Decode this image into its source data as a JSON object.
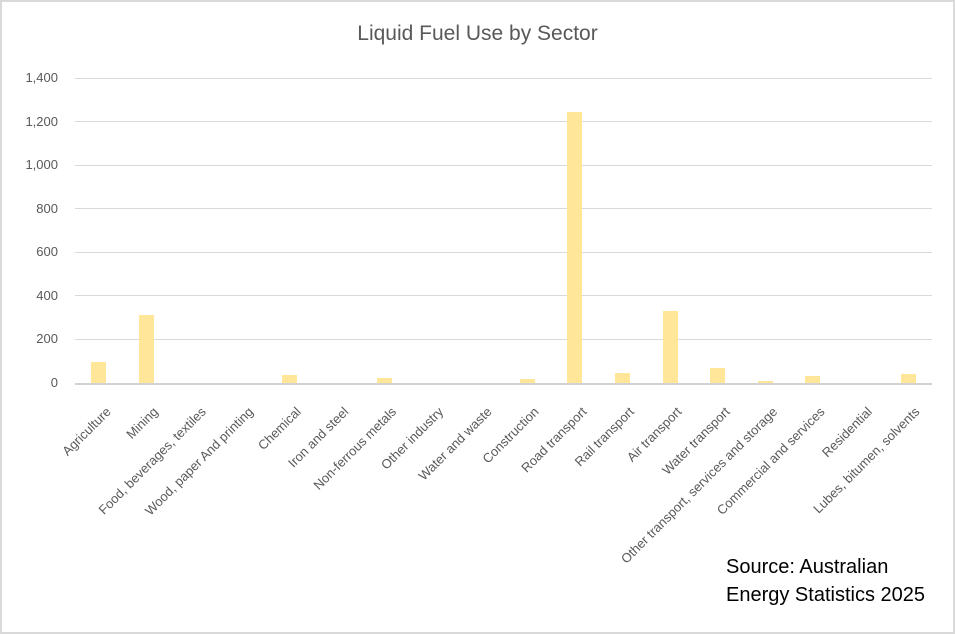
{
  "chart_data": {
    "type": "bar",
    "title": "Liquid Fuel Use by Sector",
    "categories": [
      "Agriculture",
      "Mining",
      "Food, beverages, textiles",
      "Wood, paper And printing",
      "Chemical",
      "Iron and steel",
      "Non-ferrous metals",
      "Other industry",
      "Water and waste",
      "Construction",
      "Road transport",
      "Rail transport",
      "Air transport",
      "Water transport",
      "Other transport, services and storage",
      "Commercial and services",
      "Residential",
      "Lubes, bitumen, solvents"
    ],
    "values": [
      95,
      310,
      0,
      0,
      35,
      0,
      25,
      0,
      0,
      20,
      1245,
      45,
      330,
      70,
      10,
      30,
      0,
      40
    ],
    "xlabel": "",
    "ylabel": "",
    "ylim": [
      0,
      1400
    ],
    "y_tick_step": 200,
    "y_tick_labels": [
      "0",
      "200",
      "400",
      "600",
      "800",
      "1,000",
      "1,200",
      "1,400"
    ],
    "grid": true,
    "legend": false,
    "bar_color": "#FFE699",
    "gridline_color": "#D9D9D9",
    "axis_line_color": "#D2D2D2",
    "axis_text_color": "#595959",
    "title_color": "#595959",
    "source_lines": [
      "Source: Australian",
      "Energy Statistics 2025"
    ]
  }
}
